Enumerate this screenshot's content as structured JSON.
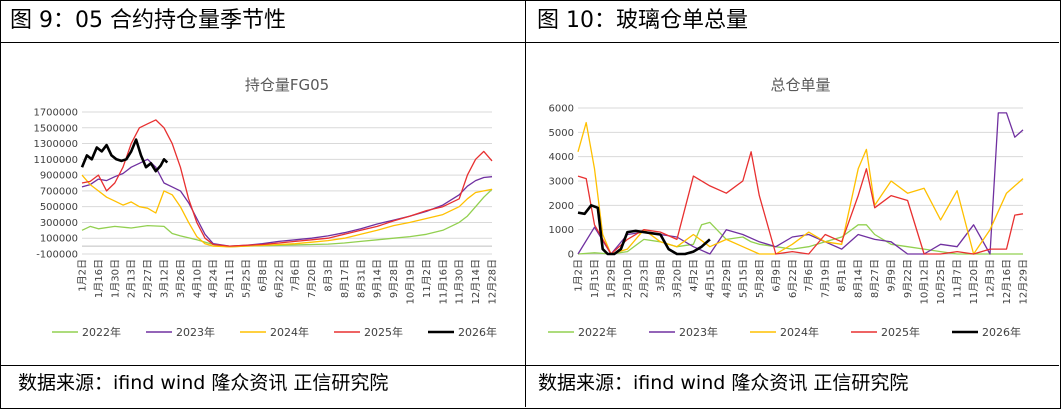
{
  "panels": [
    {
      "title": "图 9：05 合约持仓量季节性",
      "source": "数据来源：ifind wind 隆众资讯 正信研究院",
      "chart_data": {
        "type": "line",
        "title": "持仓量FG05",
        "x_tick_labels": [
          "1月2日",
          "1月16日",
          "1月30日",
          "2月13日",
          "2月27日",
          "3月12日",
          "3月26日",
          "4月10日",
          "4月24日",
          "5月11日",
          "5月25日",
          "6月8日",
          "6月22日",
          "7月6日",
          "7月20日",
          "8月3日",
          "8月17日",
          "8月31日",
          "9月14日",
          "9月28日",
          "10月19日",
          "11月2日",
          "11月16日",
          "11月30日",
          "12月14日",
          "12月28日"
        ],
        "y_tick_labels": [
          "-100000",
          "100000",
          "300000",
          "500000",
          "700000",
          "900000",
          "1100000",
          "1300000",
          "1500000",
          "1700000"
        ],
        "ylim": [
          -100000,
          1700000
        ],
        "xlim": [
          0,
          25
        ],
        "grid": true,
        "legend_position": "bottom",
        "series": [
          {
            "name": "2022年",
            "color": "#92D050",
            "x": [
              0,
              0.5,
              1,
              2,
              3,
              4,
              5,
              5.5,
              6,
              7,
              8,
              8.5,
              9,
              10,
              11,
              12,
              13,
              14,
              15,
              16,
              17,
              18,
              19,
              20,
              21,
              22,
              23,
              23.5,
              24,
              24.5,
              25
            ],
            "values": [
              200000,
              250000,
              220000,
              250000,
              230000,
              260000,
              250000,
              160000,
              130000,
              80000,
              20000,
              0,
              -10000,
              0,
              5000,
              10000,
              15000,
              20000,
              25000,
              40000,
              60000,
              80000,
              100000,
              120000,
              150000,
              200000,
              300000,
              380000,
              500000,
              620000,
              720000
            ]
          },
          {
            "name": "2023年",
            "color": "#7030A0",
            "x": [
              0,
              0.5,
              1,
              1.5,
              2,
              2.5,
              3,
              3.5,
              4,
              4.5,
              5,
              5.5,
              6,
              6.5,
              7,
              7.5,
              8,
              9,
              10,
              11,
              12,
              13,
              14,
              15,
              16,
              17,
              18,
              19,
              20,
              21,
              22,
              23,
              23.5,
              24,
              24.5,
              25
            ],
            "values": [
              750000,
              780000,
              850000,
              830000,
              880000,
              920000,
              1000000,
              1050000,
              1100000,
              1000000,
              800000,
              750000,
              700000,
              550000,
              350000,
              150000,
              30000,
              0,
              10000,
              30000,
              60000,
              80000,
              100000,
              130000,
              170000,
              220000,
              280000,
              330000,
              380000,
              440000,
              520000,
              650000,
              760000,
              830000,
              870000,
              880000
            ]
          },
          {
            "name": "2024年",
            "color": "#FFC000",
            "x": [
              0,
              0.5,
              1,
              1.5,
              2,
              2.5,
              3,
              3.5,
              4,
              4.5,
              5,
              5.5,
              6,
              6.5,
              7,
              7.5,
              8,
              9,
              10,
              11,
              12,
              13,
              14,
              15,
              16,
              17,
              18,
              19,
              20,
              21,
              22,
              23,
              23.5,
              24,
              24.5,
              25
            ],
            "values": [
              900000,
              780000,
              700000,
              620000,
              570000,
              520000,
              560000,
              500000,
              480000,
              420000,
              700000,
              650000,
              500000,
              300000,
              120000,
              30000,
              0,
              -10000,
              0,
              10000,
              20000,
              30000,
              50000,
              70000,
              100000,
              150000,
              200000,
              260000,
              300000,
              350000,
              400000,
              500000,
              600000,
              680000,
              700000,
              720000
            ]
          },
          {
            "name": "2025年",
            "color": "#E83030",
            "x": [
              0,
              0.5,
              1,
              1.5,
              2,
              2.5,
              3,
              3.5,
              4,
              4.5,
              5,
              5.5,
              6,
              6.5,
              7,
              7.5,
              8,
              9,
              10,
              11,
              12,
              13,
              14,
              15,
              16,
              17,
              18,
              19,
              20,
              21,
              22,
              23,
              23.5,
              24,
              24.5,
              25
            ],
            "values": [
              800000,
              820000,
              900000,
              700000,
              800000,
              1000000,
              1300000,
              1500000,
              1550000,
              1600000,
              1500000,
              1300000,
              1000000,
              600000,
              300000,
              100000,
              20000,
              0,
              10000,
              20000,
              40000,
              60000,
              80000,
              100000,
              150000,
              200000,
              250000,
              320000,
              380000,
              450000,
              500000,
              600000,
              900000,
              1100000,
              1200000,
              1080000
            ]
          },
          {
            "name": "2026年",
            "color": "#000000",
            "x": [
              0,
              0.3,
              0.6,
              0.9,
              1.2,
              1.5,
              1.8,
              2.1,
              2.4,
              2.7,
              3,
              3.3,
              3.6,
              3.9,
              4.2,
              4.5,
              4.8,
              5,
              5.2
            ],
            "values": [
              1000000,
              1150000,
              1100000,
              1250000,
              1200000,
              1280000,
              1150000,
              1100000,
              1080000,
              1100000,
              1200000,
              1350000,
              1150000,
              1000000,
              1050000,
              950000,
              1020000,
              1100000,
              1060000
            ]
          }
        ]
      }
    },
    {
      "title": "图 10：玻璃仓单总量",
      "source": "数据来源：ifind wind 隆众资讯 正信研究院",
      "chart_data": {
        "type": "line",
        "title": "总仓单量",
        "x_tick_labels": [
          "1月2日",
          "1月15日",
          "1月29日",
          "2月10日",
          "2月23日",
          "3月8日",
          "3月20日",
          "4月2日",
          "4月15日",
          "4月29日",
          "5月15日",
          "5月28日",
          "6月9日",
          "6月22日",
          "7月6日",
          "7月19日",
          "8月1日",
          "8月14日",
          "8月27日",
          "9月9日",
          "9月22日",
          "10月12日",
          "10月25日",
          "11月7日",
          "11月20日",
          "12月3日",
          "12月16日",
          "12月29日"
        ],
        "y_tick_labels": [
          "0",
          "1000",
          "2000",
          "3000",
          "4000",
          "5000",
          "6000"
        ],
        "ylim": [
          0,
          6000
        ],
        "xlim": [
          0,
          27
        ],
        "grid": true,
        "legend_position": "bottom",
        "series": [
          {
            "name": "2022年",
            "color": "#92D050",
            "x": [
              0,
              1,
              2,
              3,
              4,
              5,
              6,
              7,
              7.5,
              8,
              9,
              10,
              10.5,
              11,
              12,
              13,
              14,
              15,
              16,
              17,
              17.5,
              18,
              19,
              20,
              21,
              22,
              23,
              24,
              25,
              26,
              27
            ],
            "values": [
              0,
              50,
              0,
              100,
              600,
              500,
              300,
              400,
              1200,
              1300,
              600,
              700,
              500,
              400,
              300,
              200,
              300,
              500,
              700,
              1200,
              1200,
              800,
              400,
              300,
              200,
              100,
              0,
              0,
              0,
              0,
              0
            ]
          },
          {
            "name": "2023年",
            "color": "#7030A0",
            "x": [
              0,
              1,
              2,
              3,
              4,
              5,
              6,
              7,
              8,
              9,
              10,
              11,
              12,
              13,
              14,
              15,
              16,
              17,
              18,
              19,
              20,
              21,
              22,
              23,
              24,
              25,
              25.5,
              26,
              26.5,
              27
            ],
            "values": [
              0,
              1100,
              0,
              800,
              900,
              800,
              700,
              300,
              0,
              1000,
              800,
              500,
              300,
              700,
              800,
              500,
              200,
              800,
              600,
              500,
              0,
              0,
              400,
              300,
              1200,
              0,
              5800,
              5800,
              4800,
              5100
            ]
          },
          {
            "name": "2024年",
            "color": "#FFC000",
            "x": [
              0,
              0.5,
              1,
              1.5,
              2,
              3,
              4,
              5,
              6,
              7,
              8,
              9,
              10,
              11,
              12,
              13,
              14,
              15,
              16,
              17,
              17.5,
              18,
              19,
              20,
              21,
              22,
              23,
              24,
              25,
              26,
              26.5,
              27
            ],
            "values": [
              4200,
              5400,
              3500,
              800,
              0,
              200,
              1000,
              500,
              300,
              800,
              300,
              600,
              300,
              0,
              0,
              400,
              900,
              500,
              400,
              3500,
              4300,
              2000,
              3000,
              2500,
              2700,
              1400,
              2600,
              0,
              1000,
              2500,
              2800,
              3100
            ]
          },
          {
            "name": "2025年",
            "color": "#E83030",
            "x": [
              0,
              0.5,
              1,
              2,
              3,
              4,
              5,
              6,
              7,
              8,
              9,
              10,
              10.5,
              11,
              12,
              13,
              14,
              15,
              16,
              17,
              17.5,
              18,
              19,
              20,
              21,
              22,
              23,
              24,
              25,
              26,
              26.5,
              27
            ],
            "values": [
              3200,
              3100,
              1200,
              0,
              600,
              1000,
              900,
              600,
              3200,
              2800,
              2500,
              3000,
              4200,
              2400,
              0,
              100,
              0,
              800,
              500,
              2400,
              3500,
              1900,
              2400,
              2200,
              0,
              0,
              100,
              0,
              200,
              200,
              1600,
              1650
            ]
          },
          {
            "name": "2026年",
            "color": "#000000",
            "x": [
              0,
              0.4,
              0.8,
              1.2,
              1.5,
              1.8,
              2.2,
              2.6,
              3,
              3.5,
              4,
              4.5,
              5,
              5.5,
              6,
              6.5,
              7,
              7.5,
              8
            ],
            "values": [
              1700,
              1650,
              2000,
              1900,
              200,
              0,
              0,
              200,
              900,
              950,
              900,
              850,
              800,
              200,
              0,
              0,
              100,
              300,
              600
            ]
          }
        ]
      }
    }
  ]
}
